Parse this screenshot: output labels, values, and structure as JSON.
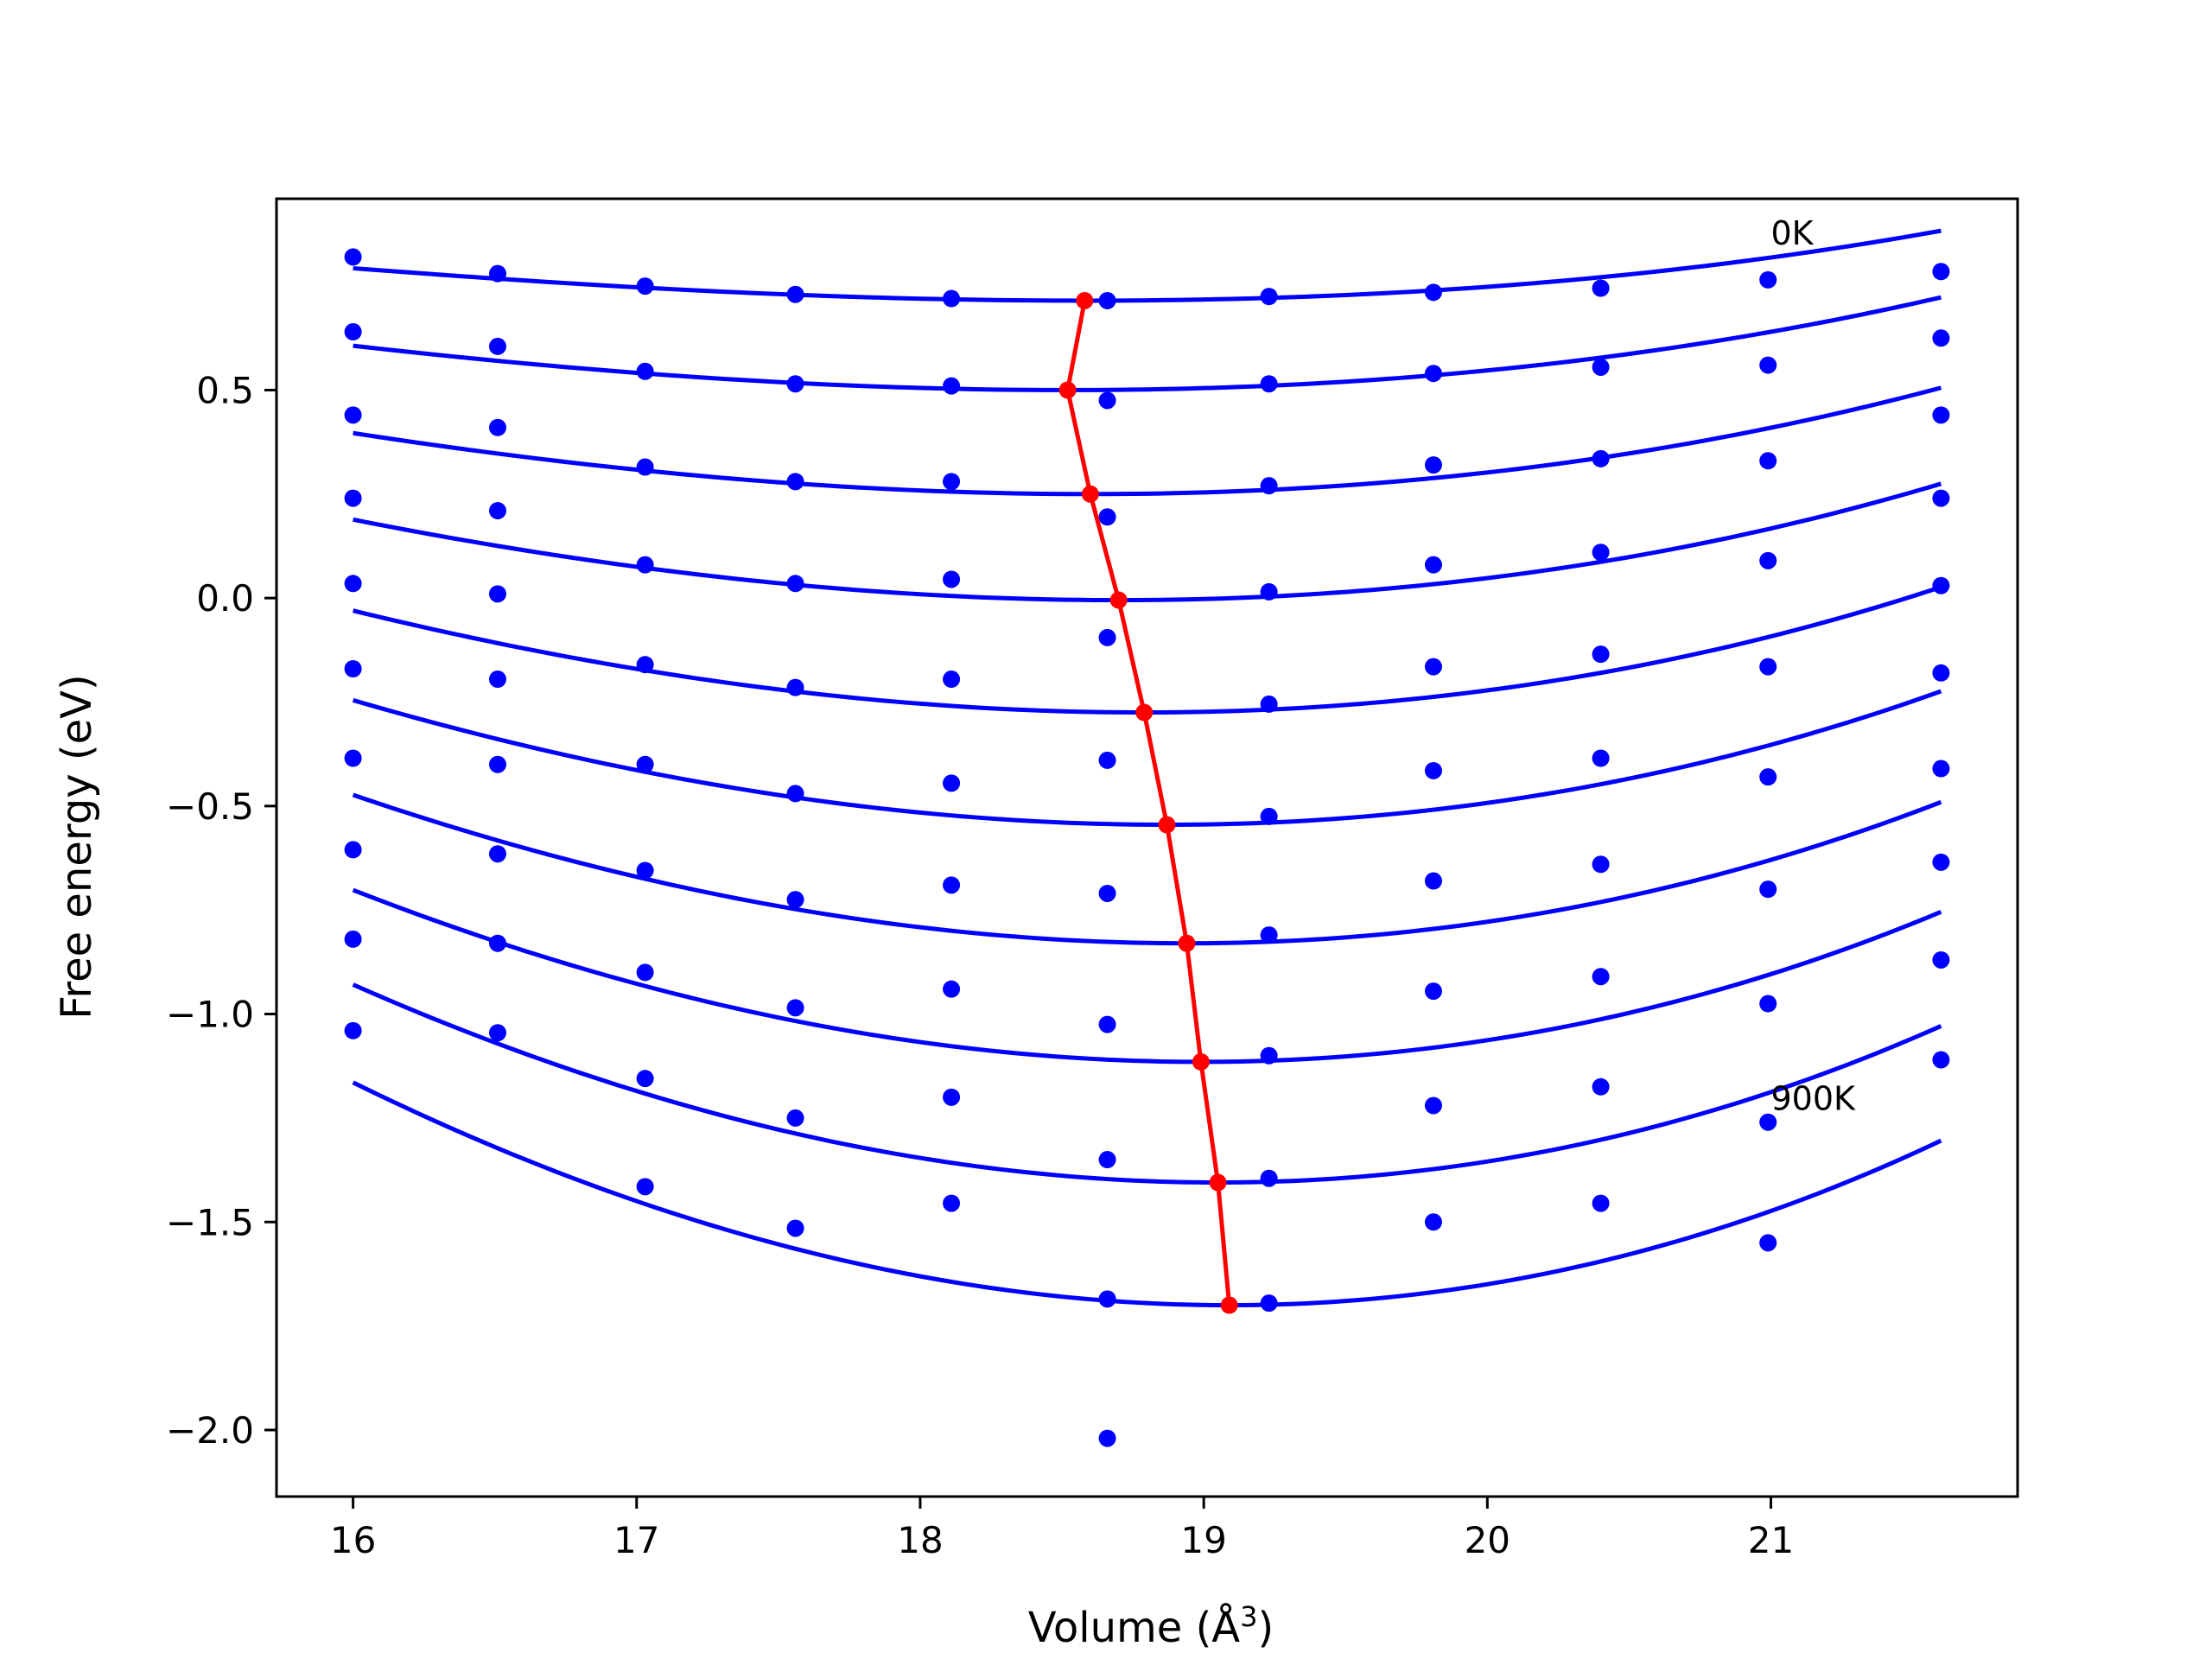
{
  "chart_data": {
    "type": "line",
    "xlabel": "Volume (Å",
    "xlabel_sup": "3",
    "xlabel_close": ")",
    "ylabel": "Free energy (eV)",
    "xlim": [
      15.73,
      21.87
    ],
    "ylim": [
      -2.16,
      0.96
    ],
    "xticks": [
      16,
      17,
      18,
      19,
      20,
      21
    ],
    "xtick_labels": [
      "16",
      "17",
      "18",
      "19",
      "20",
      "21"
    ],
    "yticks": [
      0.5,
      0.0,
      -0.5,
      -1.0,
      -1.5,
      -2.0
    ],
    "ytick_labels": [
      "0.5",
      "0.0",
      "−0.5",
      "−1.0",
      "−1.5",
      "−2.0"
    ],
    "grid": false,
    "annotations": [
      {
        "text": "0K",
        "x": 21.0,
        "y": 0.85
      },
      {
        "text": "900K",
        "x": 21.0,
        "y": -1.23
      }
    ],
    "fit_x_range": [
      16.0,
      21.6
    ],
    "series_color": "#0000ff",
    "minimum_color": "#ff0000",
    "data_x": [
      16.0,
      16.51,
      17.03,
      17.56,
      18.11,
      18.66,
      19.23,
      19.81,
      20.4,
      20.99,
      21.6
    ],
    "series": [
      {
        "y": [
          0.82,
          0.78,
          0.75,
          0.73,
          0.72,
          0.715,
          0.725,
          0.735,
          0.745,
          0.765,
          0.785
        ],
        "fit": {
          "x0": 18.58,
          "y0": 0.715,
          "a": 0.0148,
          "b": 0.0012
        }
      },
      {
        "y": [
          0.64,
          0.605,
          0.545,
          0.515,
          0.51,
          0.475,
          0.515,
          0.54,
          0.555,
          0.56,
          0.625
        ],
        "fit": {
          "x0": 18.52,
          "y0": 0.5,
          "a": 0.0198,
          "b": 0.0012
        }
      },
      {
        "y": [
          0.44,
          0.41,
          0.315,
          0.28,
          0.28,
          0.195,
          0.27,
          0.32,
          0.335,
          0.33,
          0.44
        ],
        "fit": {
          "x0": 18.6,
          "y0": 0.25,
          "a": 0.0248,
          "b": 0.0012
        }
      },
      {
        "y": [
          0.24,
          0.21,
          0.08,
          0.035,
          0.045,
          -0.095,
          0.015,
          0.08,
          0.11,
          0.09,
          0.24
        ],
        "fit": {
          "x0": 18.7,
          "y0": -0.005,
          "a": 0.0298,
          "b": 0.0012
        }
      },
      {
        "y": [
          0.035,
          0.01,
          -0.16,
          -0.215,
          -0.195,
          -0.39,
          -0.255,
          -0.165,
          -0.135,
          -0.165,
          0.03
        ],
        "fit": {
          "x0": 18.79,
          "y0": -0.275,
          "a": 0.0348,
          "b": 0.0012
        }
      },
      {
        "y": [
          -0.17,
          -0.195,
          -0.4,
          -0.47,
          -0.445,
          -0.71,
          -0.525,
          -0.415,
          -0.385,
          -0.43,
          -0.18
        ],
        "fit": {
          "x0": 18.87,
          "y0": -0.545,
          "a": 0.0398,
          "b": 0.0012
        }
      },
      {
        "y": [
          -0.385,
          -0.4,
          -0.655,
          -0.725,
          -0.69,
          -1.025,
          -0.81,
          -0.68,
          -0.64,
          -0.7,
          -0.41
        ],
        "fit": {
          "x0": 18.94,
          "y0": -0.83,
          "a": 0.0448,
          "b": 0.0012
        }
      },
      {
        "y": [
          -0.605,
          -0.615,
          -0.9,
          -0.985,
          -0.94,
          -1.35,
          -1.1,
          -0.945,
          -0.91,
          -0.975,
          -0.635
        ],
        "fit": {
          "x0": 18.99,
          "y0": -1.115,
          "a": 0.0498,
          "b": 0.0012
        }
      },
      {
        "y": [
          -0.82,
          -0.83,
          -1.155,
          -1.25,
          -1.2,
          -1.685,
          -1.395,
          -1.22,
          -1.175,
          -1.26,
          -0.87
        ],
        "fit": {
          "x0": 19.05,
          "y0": -1.405,
          "a": 0.0548,
          "b": 0.0012
        }
      },
      {
        "y": [
          -1.04,
          -1.045,
          -1.415,
          -1.515,
          -1.455,
          -2.02,
          -1.695,
          -1.5,
          -1.455,
          -1.55,
          -1.11
        ],
        "fit": {
          "x0": 19.09,
          "y0": -1.7,
          "a": 0.0598,
          "b": 0.0012
        }
      }
    ],
    "minima": {
      "x": [
        18.58,
        18.52,
        18.6,
        18.7,
        18.79,
        18.87,
        18.94,
        18.99,
        19.05,
        19.09
      ],
      "y": [
        0.715,
        0.5,
        0.25,
        -0.005,
        -0.275,
        -0.545,
        -0.83,
        -1.115,
        -1.405,
        -1.7
      ]
    }
  }
}
